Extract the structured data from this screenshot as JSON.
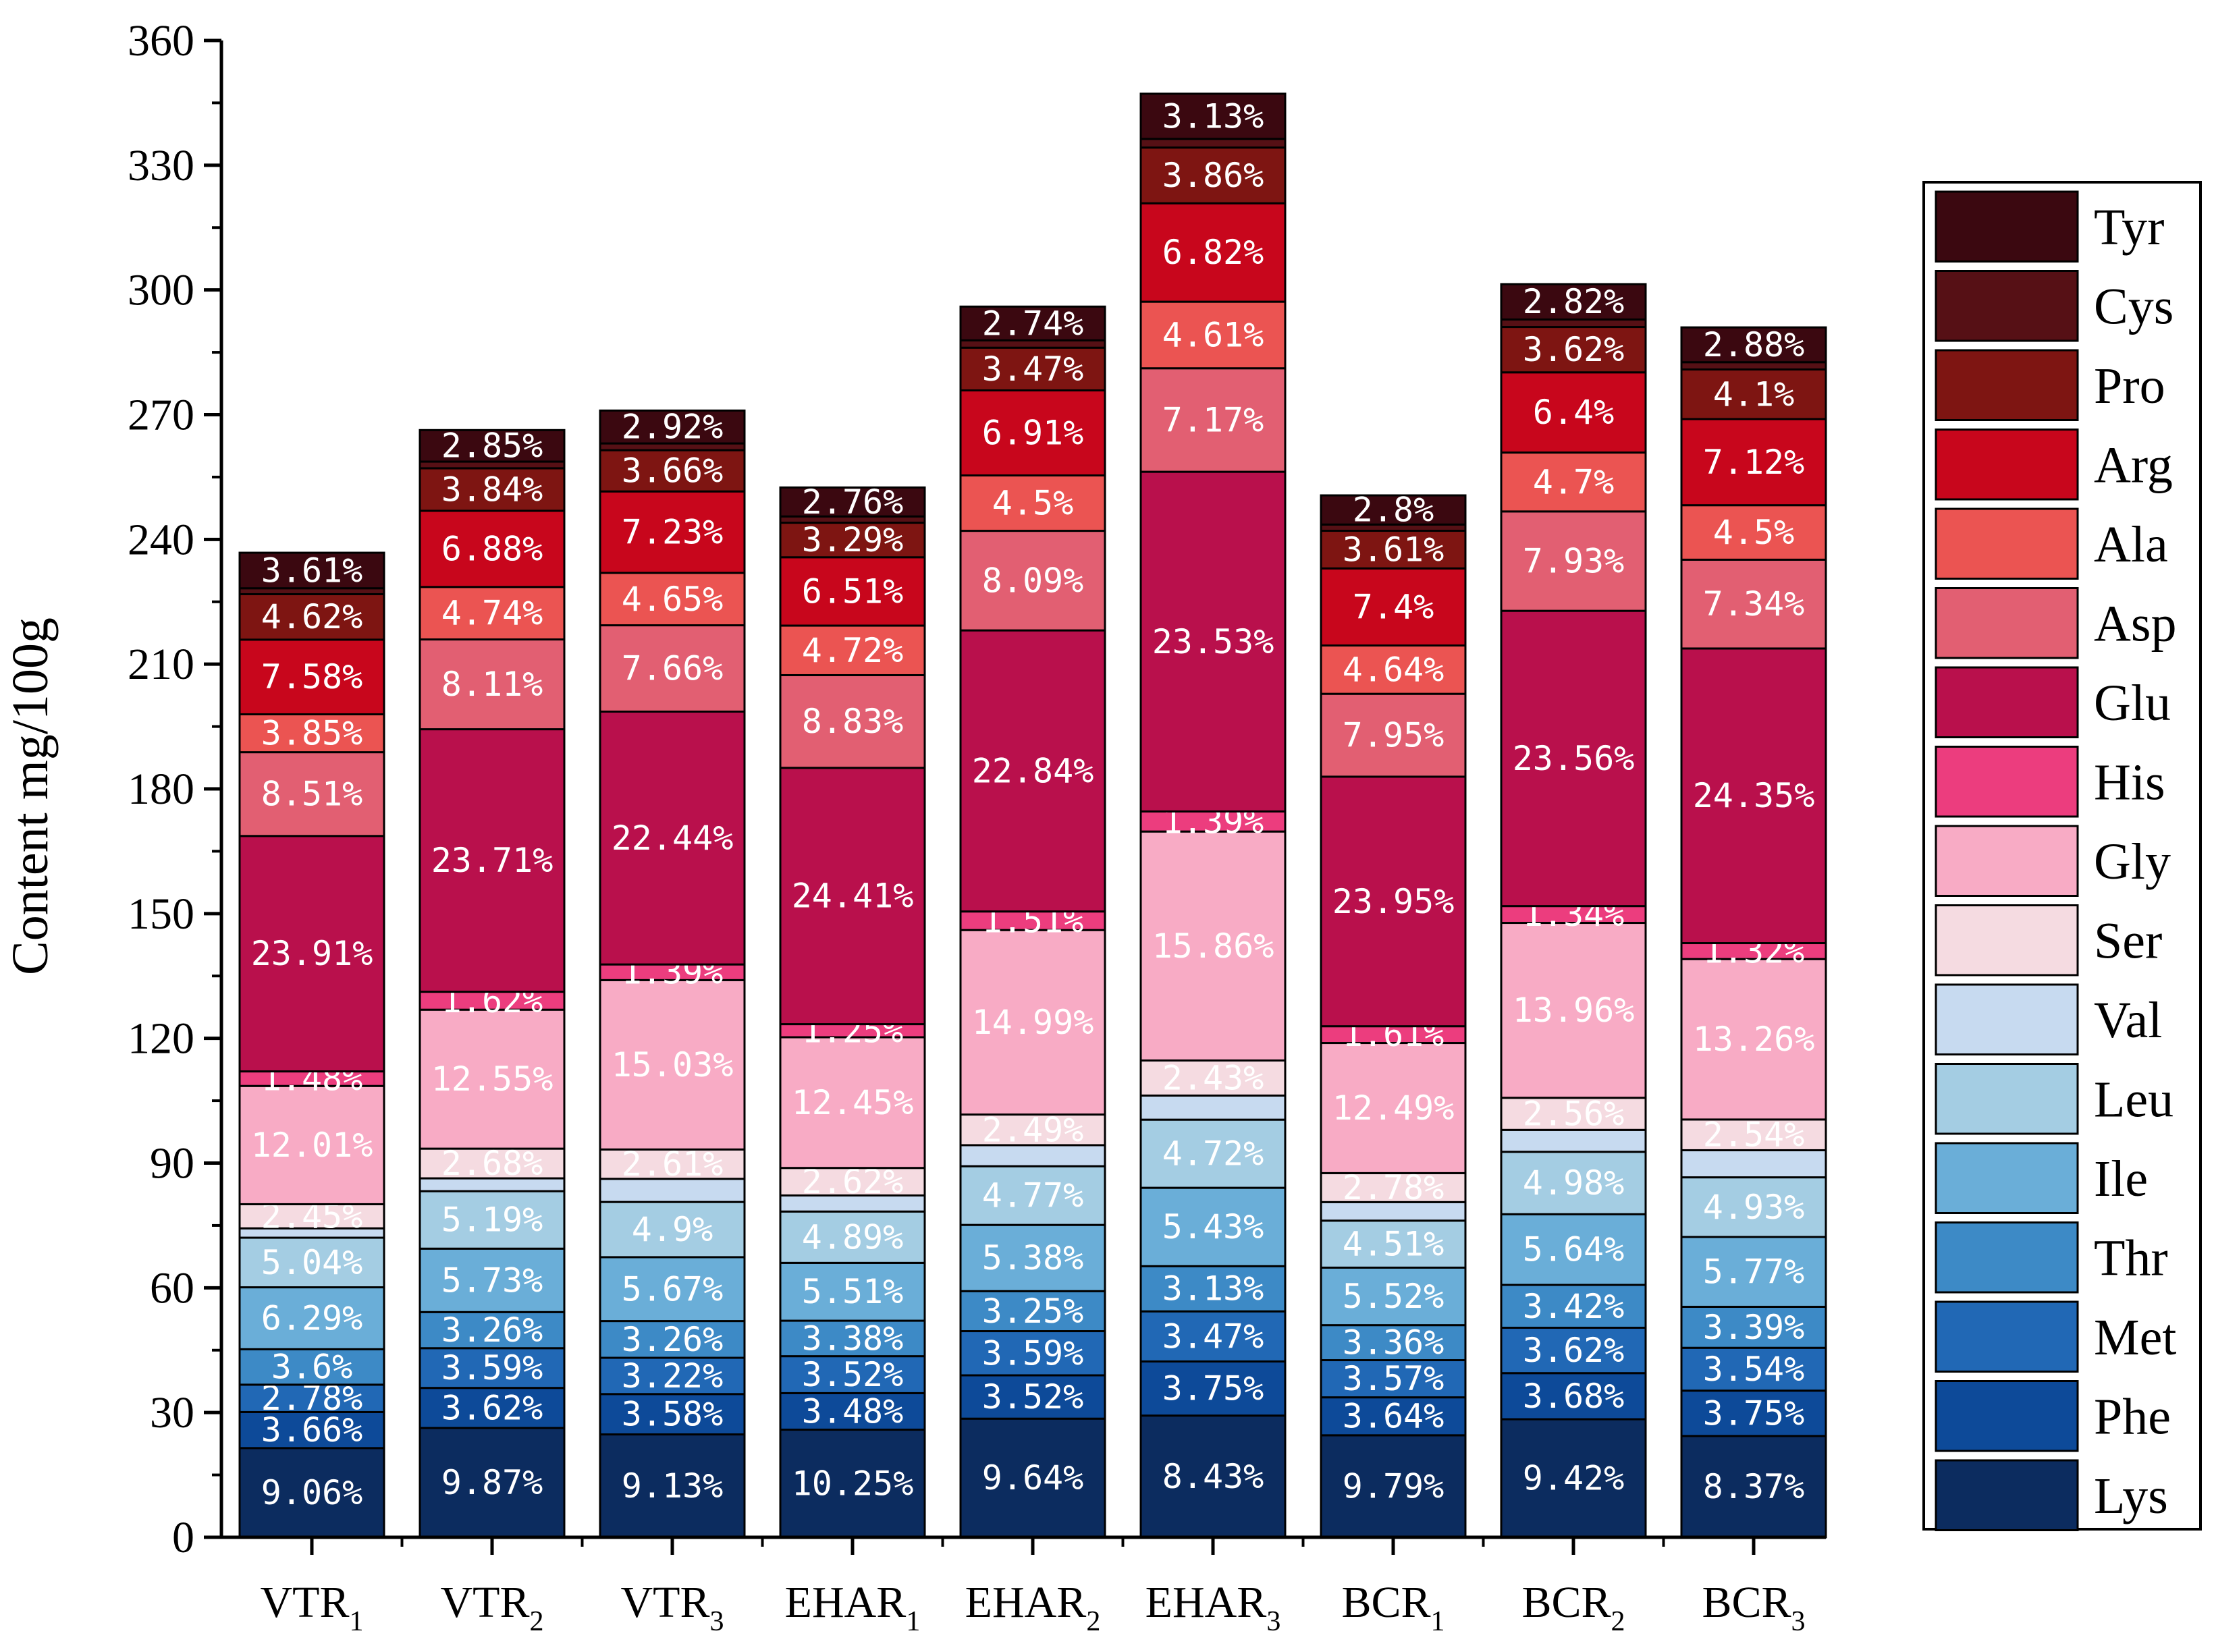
{
  "chart_data": {
    "type": "bar",
    "stacked": true,
    "title": "",
    "xlabel": "",
    "ylabel": "Content mg/100g",
    "ylim": [
      0,
      360
    ],
    "yticks": [
      0,
      30,
      60,
      90,
      120,
      150,
      180,
      210,
      240,
      270,
      300,
      330,
      360
    ],
    "grid": false,
    "legend_position": "right",
    "categories": [
      {
        "base": "VTR",
        "sub": "1"
      },
      {
        "base": "VTR",
        "sub": "2"
      },
      {
        "base": "VTR",
        "sub": "3"
      },
      {
        "base": "EHAR",
        "sub": "1"
      },
      {
        "base": "EHAR",
        "sub": "2"
      },
      {
        "base": "EHAR",
        "sub": "3"
      },
      {
        "base": "BCR",
        "sub": "1"
      },
      {
        "base": "BCR",
        "sub": "2"
      },
      {
        "base": "BCR",
        "sub": "3"
      }
    ],
    "totals": [
      236.8,
      266.3,
      271.0,
      252.5,
      296.0,
      347.2,
      250.6,
      301.4,
      291.0
    ],
    "series": [
      {
        "name": "Lys",
        "color": "#0c2c5f",
        "percents": [
          9.06,
          9.87,
          9.13,
          10.25,
          9.64,
          8.43,
          9.79,
          9.42,
          8.37
        ],
        "labels": [
          "9.06%",
          "9.87%",
          "9.13%",
          "10.25%",
          "9.64%",
          "8.43%",
          "9.79%",
          "9.42%",
          "8.37%"
        ]
      },
      {
        "name": "Phe",
        "color": "#0d4a99",
        "percents": [
          3.66,
          3.62,
          3.58,
          3.48,
          3.52,
          3.75,
          3.64,
          3.68,
          3.75
        ],
        "labels": [
          "3.66%",
          "3.62%",
          "3.58%",
          "3.48%",
          "3.52%",
          "3.75%",
          "3.64%",
          "3.68%",
          "3.75%"
        ]
      },
      {
        "name": "Met",
        "color": "#2168b5",
        "percents": [
          2.78,
          3.59,
          3.22,
          3.52,
          3.59,
          3.47,
          3.57,
          3.62,
          3.54
        ],
        "labels": [
          "2.78%",
          "3.59%",
          "3.22%",
          "3.52%",
          "3.59%",
          "3.47%",
          "3.57%",
          "3.62%",
          "3.54%"
        ]
      },
      {
        "name": "Thr",
        "color": "#3d8ac6",
        "percents": [
          3.6,
          3.26,
          3.26,
          3.38,
          3.25,
          3.13,
          3.36,
          3.42,
          3.39
        ],
        "labels": [
          "3.6%",
          "3.26%",
          "3.26%",
          "3.38%",
          "3.25%",
          "3.13%",
          "3.36%",
          "3.42%",
          "3.39%"
        ]
      },
      {
        "name": "Ile",
        "color": "#6aaed8",
        "percents": [
          6.29,
          5.73,
          5.67,
          5.51,
          5.38,
          5.43,
          5.52,
          5.64,
          5.77
        ],
        "labels": [
          "6.29%",
          "5.73%",
          "5.67%",
          "5.51%",
          "5.38%",
          "5.43%",
          "5.52%",
          "5.64%",
          "5.77%"
        ]
      },
      {
        "name": "Leu",
        "color": "#a4cde3",
        "percents": [
          5.04,
          5.19,
          4.9,
          4.89,
          4.77,
          4.72,
          4.51,
          4.98,
          4.93
        ],
        "labels": [
          "5.04%",
          "5.19%",
          "4.9%",
          "4.89%",
          "4.77%",
          "4.72%",
          "4.51%",
          "4.98%",
          "4.93%"
        ]
      },
      {
        "name": "Val",
        "color": "#c7daf0",
        "percents": [
          0,
          0,
          0,
          0,
          0,
          0,
          0,
          0,
          0
        ],
        "labels": [
          "",
          "",
          "",
          "",
          "",
          "",
          "",
          "",
          ""
        ]
      },
      {
        "name": "Ser",
        "color": "#f5dbe1",
        "percents": [
          2.45,
          2.68,
          2.61,
          2.62,
          2.49,
          2.43,
          2.78,
          2.56,
          2.54
        ],
        "labels": [
          "2.45%",
          "2.68%",
          "2.61%",
          "2.62%",
          "2.49%",
          "2.43%",
          "2.78%",
          "2.56%",
          "2.54%"
        ]
      },
      {
        "name": "Gly",
        "color": "#f8abc5",
        "percents": [
          12.01,
          12.55,
          15.03,
          12.45,
          14.99,
          15.86,
          12.49,
          13.96,
          13.26
        ],
        "labels": [
          "12.01%",
          "12.55%",
          "15.03%",
          "12.45%",
          "14.99%",
          "15.86%",
          "12.49%",
          "13.96%",
          "13.26%"
        ]
      },
      {
        "name": "His",
        "color": "#ec3d7e",
        "percents": [
          1.48,
          1.62,
          1.39,
          1.25,
          1.51,
          1.39,
          1.61,
          1.34,
          1.32
        ],
        "labels": [
          "1.48%",
          "1.62%",
          "1.39%",
          "1.25%",
          "1.51%",
          "1.39%",
          "1.61%",
          "1.34%",
          "1.32%"
        ]
      },
      {
        "name": "Glu",
        "color": "#b9104c",
        "percents": [
          23.91,
          23.71,
          22.44,
          24.41,
          22.84,
          23.53,
          23.95,
          23.56,
          24.35
        ],
        "labels": [
          "23.91%",
          "23.71%",
          "22.44%",
          "24.41%",
          "22.84%",
          "23.53%",
          "23.95%",
          "23.56%",
          "24.35%"
        ]
      },
      {
        "name": "Asp",
        "color": "#e25f72",
        "percents": [
          8.51,
          8.11,
          7.66,
          8.83,
          8.09,
          7.17,
          7.95,
          7.93,
          7.34
        ],
        "labels": [
          "8.51%",
          "8.11%",
          "7.66%",
          "8.83%",
          "8.09%",
          "7.17%",
          "7.95%",
          "7.93%",
          "7.34%"
        ]
      },
      {
        "name": "Ala",
        "color": "#eb5452",
        "percents": [
          3.85,
          4.74,
          4.65,
          4.72,
          4.5,
          4.61,
          4.64,
          4.7,
          4.5
        ],
        "labels": [
          "3.85%",
          "4.74%",
          "4.65%",
          "4.72%",
          "4.5%",
          "4.61%",
          "4.64%",
          "4.7%",
          "4.5%"
        ]
      },
      {
        "name": "Arg",
        "color": "#c8061c",
        "percents": [
          7.58,
          6.88,
          7.23,
          6.51,
          6.91,
          6.82,
          7.4,
          6.4,
          7.12
        ],
        "labels": [
          "7.58%",
          "6.88%",
          "7.23%",
          "6.51%",
          "6.91%",
          "6.82%",
          "7.4%",
          "6.4%",
          "7.12%"
        ]
      },
      {
        "name": "Pro",
        "color": "#7e1512",
        "percents": [
          4.62,
          3.84,
          3.66,
          3.29,
          3.47,
          3.86,
          3.61,
          3.62,
          4.1
        ],
        "labels": [
          "4.62%",
          "3.84%",
          "3.66%",
          "3.29%",
          "3.47%",
          "3.86%",
          "3.61%",
          "3.62%",
          "4.1%"
        ]
      },
      {
        "name": "Cys",
        "color": "#561015",
        "percents": [
          0.6,
          0.6,
          0.6,
          0.6,
          0.6,
          0.6,
          0.6,
          0.6,
          0.6
        ],
        "labels": [
          "",
          "",
          "",
          "",
          "",
          "",
          "",
          "",
          ""
        ]
      },
      {
        "name": "Tyr",
        "color": "#3b0810",
        "percents": [
          3.61,
          2.85,
          2.92,
          2.76,
          2.74,
          3.13,
          2.8,
          2.82,
          2.88
        ],
        "labels": [
          "3.61%",
          "2.85%",
          "2.92%",
          "2.76%",
          "2.74%",
          "3.13%",
          "2.8%",
          "2.82%",
          "2.88%"
        ]
      }
    ]
  }
}
